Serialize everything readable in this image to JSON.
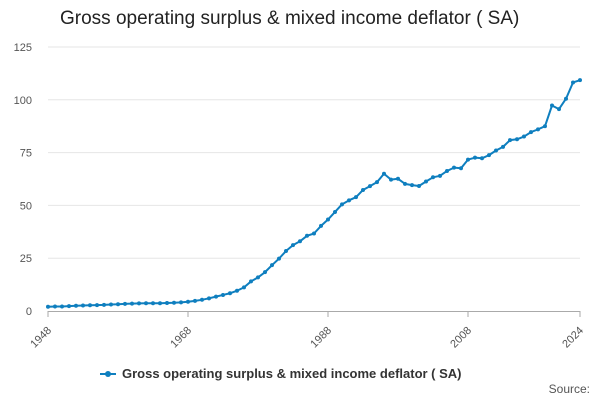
{
  "chart_data": {
    "type": "line",
    "title": "Gross operating surplus & mixed income deflator ( SA)",
    "xlabel": "",
    "ylabel": "",
    "xlim": [
      1948,
      2024
    ],
    "ylim": [
      0,
      125
    ],
    "y_ticks": [
      "0",
      "25",
      "50",
      "75",
      "100",
      "125"
    ],
    "x_ticks": [
      "1948",
      "1968",
      "1988",
      "2008",
      "2024"
    ],
    "grid": true,
    "legend_position": "bottom",
    "series": [
      {
        "name": "Gross operating surplus & mixed income deflator ( SA)",
        "color": "#0f7fbf",
        "x": [
          1948,
          1949,
          1950,
          1951,
          1952,
          1953,
          1954,
          1955,
          1956,
          1957,
          1958,
          1959,
          1960,
          1961,
          1962,
          1963,
          1964,
          1965,
          1966,
          1967,
          1968,
          1969,
          1970,
          1971,
          1972,
          1973,
          1974,
          1975,
          1976,
          1977,
          1978,
          1979,
          1980,
          1981,
          1982,
          1983,
          1984,
          1985,
          1986,
          1987,
          1988,
          1989,
          1990,
          1991,
          1992,
          1993,
          1994,
          1995,
          1996,
          1997,
          1998,
          1999,
          2000,
          2001,
          2002,
          2003,
          2004,
          2005,
          2006,
          2007,
          2008,
          2009,
          2010,
          2011,
          2012,
          2013,
          2014,
          2015,
          2016,
          2017,
          2018,
          2019,
          2020,
          2021,
          2022,
          2023,
          2024
        ],
        "values": [
          2.0,
          2.1,
          2.1,
          2.3,
          2.5,
          2.6,
          2.7,
          2.8,
          2.9,
          3.1,
          3.2,
          3.4,
          3.5,
          3.6,
          3.7,
          3.7,
          3.7,
          3.8,
          3.9,
          4.1,
          4.4,
          4.8,
          5.3,
          6.0,
          6.8,
          7.6,
          8.4,
          9.6,
          11.2,
          14.0,
          15.9,
          18.4,
          21.7,
          24.8,
          28.4,
          31.2,
          33.0,
          35.6,
          36.7,
          40.3,
          43.3,
          46.9,
          50.5,
          52.4,
          53.9,
          57.3,
          59.1,
          61.0,
          65.0,
          62.2,
          62.6,
          60.2,
          59.6,
          59.2,
          61.3,
          63.3,
          64.0,
          66.3,
          67.9,
          67.6,
          71.7,
          72.6,
          72.3,
          73.8,
          76.0,
          77.7,
          80.9,
          81.3,
          82.6,
          84.7,
          86.0,
          87.5,
          97.3,
          95.6,
          100.5,
          108.2,
          109.3
        ]
      }
    ]
  },
  "legend": {
    "label": "Gross operating surplus & mixed income deflator ( SA)"
  },
  "credits": {
    "label": "Source:"
  }
}
